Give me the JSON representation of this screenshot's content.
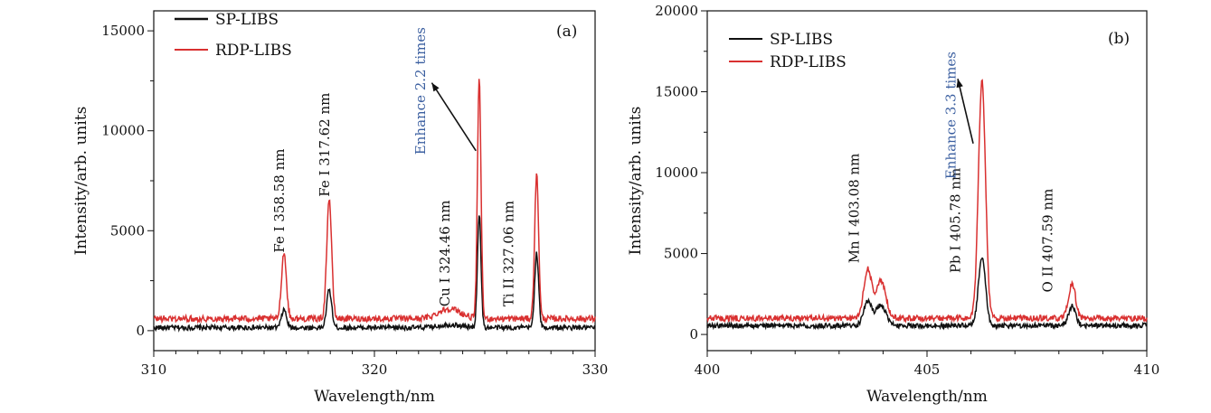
{
  "chart_data": [
    {
      "type": "line",
      "panel_label": "(a)",
      "xlabel": "Wavelength/nm",
      "ylabel": "Intensity/arb. units",
      "xlim": [
        310,
        330
      ],
      "ylim": [
        -1000,
        16000
      ],
      "xticks": [
        "310",
        "320",
        "330"
      ],
      "yticks": [
        "0",
        "5000",
        "10000",
        "15000"
      ],
      "colors": {
        "sp": "#111111",
        "rdp": "#d93030",
        "enhance": "#3b5fa0"
      },
      "legend_position": "top-left",
      "series": [
        {
          "name": "SP-LIBS",
          "color": "#111111",
          "baseline": 150,
          "noise": 180,
          "peaks": [
            [
              315.9,
              900,
              0.11
            ],
            [
              317.95,
              1900,
              0.11
            ],
            [
              323.4,
              150,
              0.5
            ],
            [
              324.75,
              5700,
              0.08
            ],
            [
              327.35,
              3700,
              0.09
            ]
          ]
        },
        {
          "name": "RDP-LIBS",
          "color": "#d93030",
          "baseline": 600,
          "noise": 220,
          "peaks": [
            [
              315.9,
              3300,
              0.11
            ],
            [
              317.95,
              6000,
              0.11
            ],
            [
              323.4,
              500,
              0.5
            ],
            [
              324.75,
              11900,
              0.08
            ],
            [
              327.35,
              7200,
              0.09
            ]
          ]
        }
      ],
      "annotations": [
        {
          "text": "Fe I 358.58 nm",
          "x": 315.9,
          "y": 3900
        },
        {
          "text": "Fe I 317.62 nm",
          "x": 317.95,
          "y": 6700
        },
        {
          "text": "Cu I 324.46 nm",
          "x": 323.4,
          "y": 1200
        },
        {
          "text": "Ti II 327.06 nm",
          "x": 326.3,
          "y": 1200
        },
        {
          "text": "Enhance 2.2 times",
          "x": 322.3,
          "y": 8800
        }
      ]
    },
    {
      "type": "line",
      "panel_label": "(b)",
      "xlabel": "Wavelength/nm",
      "ylabel": "Intensity/arb. units",
      "xlim": [
        400,
        410
      ],
      "ylim": [
        -1000,
        20000
      ],
      "xticks": [
        "400",
        "405",
        "410"
      ],
      "yticks": [
        "0",
        "5000",
        "10000",
        "15000",
        "20000"
      ],
      "colors": {
        "sp": "#111111",
        "rdp": "#d93030",
        "enhance": "#3b5fa0"
      },
      "legend_position": "top-left",
      "series": [
        {
          "name": "SP-LIBS",
          "color": "#111111",
          "baseline": 550,
          "noise": 220,
          "peaks": [
            [
              403.65,
              1500,
              0.09
            ],
            [
              403.95,
              1300,
              0.11
            ],
            [
              406.25,
              4200,
              0.08
            ],
            [
              408.3,
              1200,
              0.08
            ]
          ]
        },
        {
          "name": "RDP-LIBS",
          "color": "#d93030",
          "baseline": 1000,
          "noise": 260,
          "peaks": [
            [
              403.65,
              3000,
              0.09
            ],
            [
              403.95,
              2300,
              0.11
            ],
            [
              406.25,
              14700,
              0.08
            ],
            [
              408.3,
              2100,
              0.08
            ]
          ]
        }
      ],
      "annotations": [
        {
          "text": "Mn I 403.08 nm",
          "x": 403.45,
          "y": 4400
        },
        {
          "text": "Pb I 405.78 nm",
          "x": 405.75,
          "y": 3800
        },
        {
          "text": "O II 407.59 nm",
          "x": 407.85,
          "y": 2600
        },
        {
          "text": "Enhance 3.3 times",
          "x": 405.65,
          "y": 9600
        }
      ]
    }
  ]
}
